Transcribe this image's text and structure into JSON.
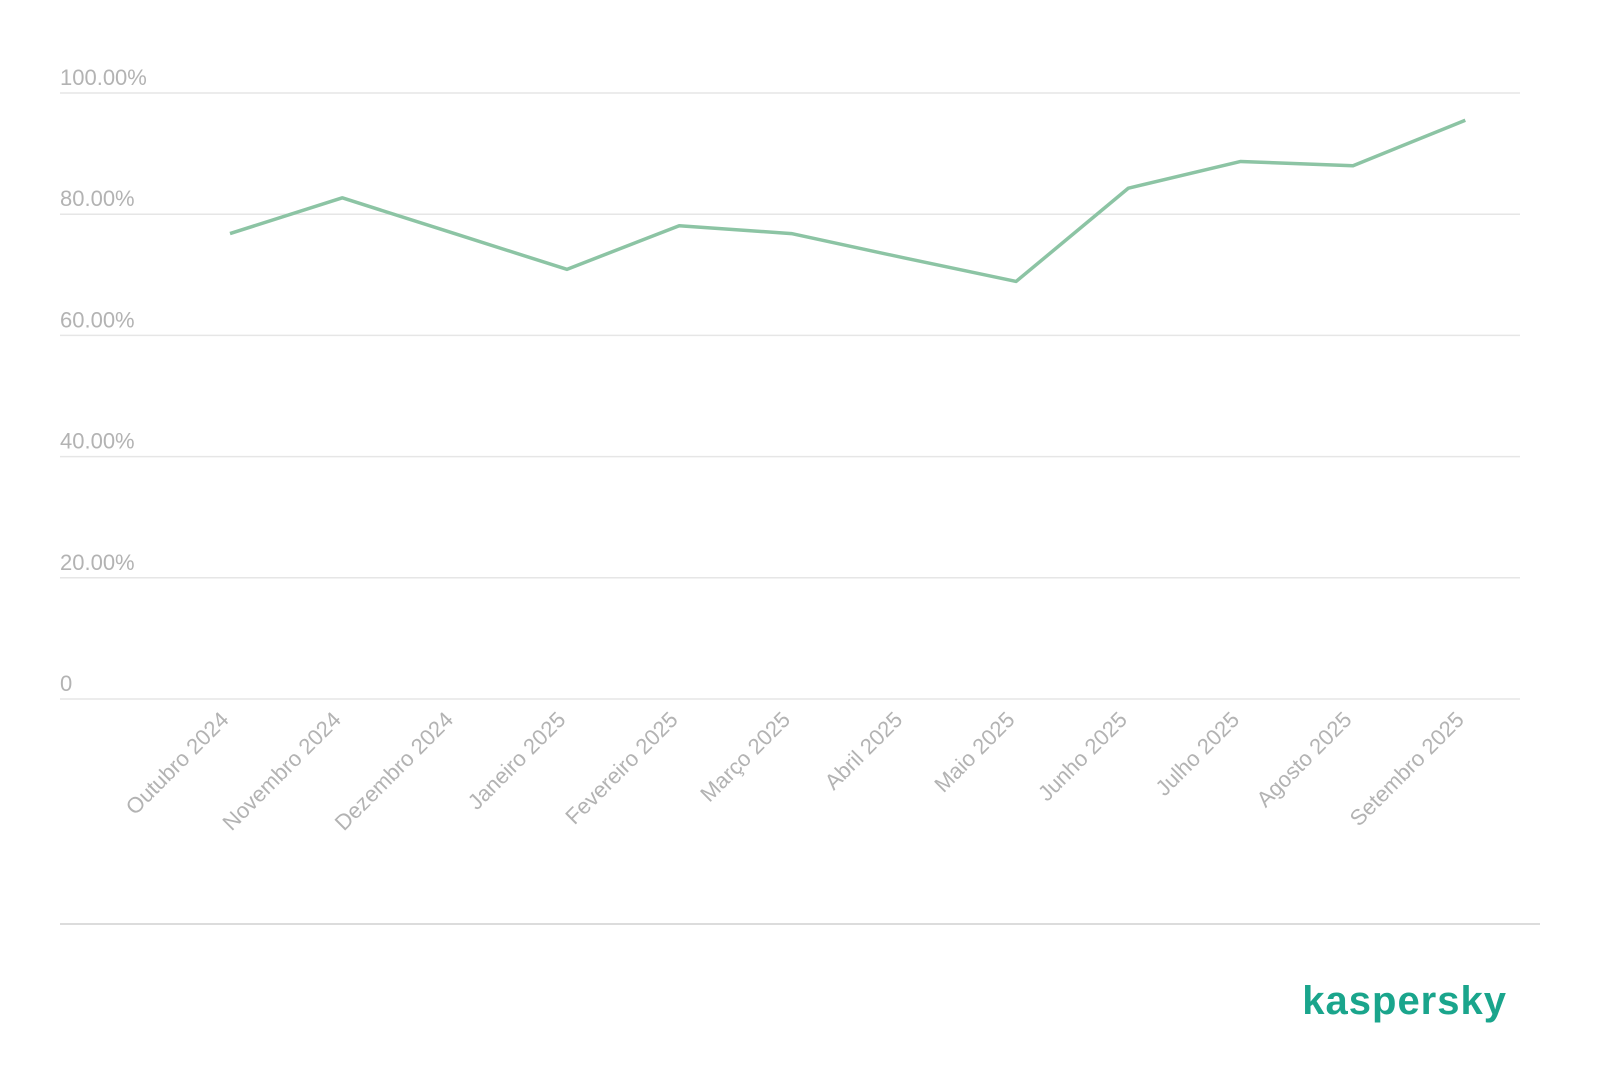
{
  "chart_data": {
    "type": "line",
    "categories": [
      "Outubro 2024",
      "Novembro 2024",
      "Dezembro 2024",
      "Janeiro 2025",
      "Fevereiro 2025",
      "Março 2025",
      "Abril 2025",
      "Maio 2025",
      "Junho 2025",
      "Julho 2025",
      "Agosto 2025",
      "Setembro 2025"
    ],
    "series": [
      {
        "color": "#8cc4a4",
        "values": [
          76.8,
          82.7,
          76.8,
          70.9,
          78.1,
          76.8,
          72.8,
          68.9,
          84.3,
          88.7,
          88.0,
          95.5
        ]
      }
    ],
    "ylim": [
      0,
      100
    ],
    "yticks": [
      0,
      {
        "value": 20,
        "label": "20.00%"
      },
      {
        "value": 40,
        "label": "40.00%"
      },
      {
        "value": 60,
        "label": "60.00%"
      },
      {
        "value": 80,
        "label": "80.00%"
      },
      {
        "value": 100,
        "label": "100.00%"
      }
    ],
    "grid": true
  },
  "logo": "kaspersky"
}
